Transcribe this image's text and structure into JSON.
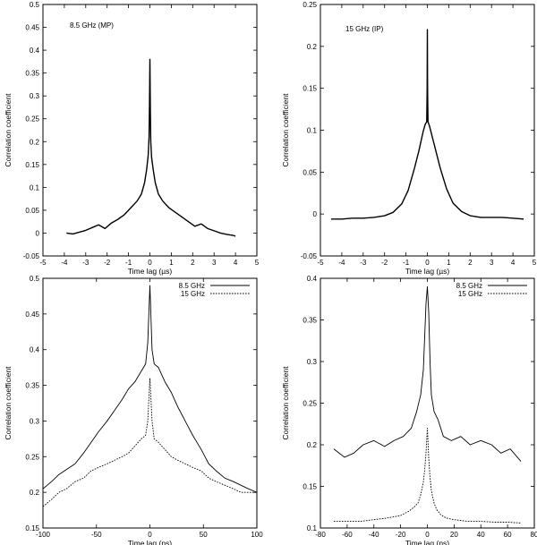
{
  "chart_data": [
    {
      "type": "line",
      "panel": "top-left",
      "annotation": "8.5 GHz (MP)",
      "xlabel": "Time lag (µs)",
      "ylabel": "Correlation coefficient",
      "xlim": [
        -5,
        5
      ],
      "ylim": [
        -0.05,
        0.5
      ],
      "xticks": [
        -5,
        -4,
        -3,
        -2,
        -1,
        0,
        1,
        2,
        3,
        4,
        5
      ],
      "yticks": [
        -0.05,
        0,
        0.05,
        0.1,
        0.15,
        0.2,
        0.25,
        0.3,
        0.35,
        0.4,
        0.45,
        0.5
      ],
      "series": [
        {
          "name": "8.5 GHz (MP)",
          "style": "solid-thick",
          "x": [
            -3.9,
            -3.6,
            -3.3,
            -3.0,
            -2.7,
            -2.4,
            -2.1,
            -1.8,
            -1.5,
            -1.2,
            -0.9,
            -0.6,
            -0.4,
            -0.25,
            -0.15,
            -0.08,
            -0.04,
            -0.02,
            0,
            0.02,
            0.04,
            0.08,
            0.15,
            0.25,
            0.4,
            0.6,
            0.9,
            1.2,
            1.5,
            1.8,
            2.1,
            2.4,
            2.7,
            3.0,
            3.3,
            3.6,
            3.9,
            4.0
          ],
          "y": [
            0.0,
            -0.002,
            0.002,
            0.006,
            0.012,
            0.018,
            0.01,
            0.022,
            0.03,
            0.04,
            0.055,
            0.07,
            0.085,
            0.11,
            0.14,
            0.17,
            0.21,
            0.28,
            0.38,
            0.27,
            0.2,
            0.165,
            0.14,
            0.11,
            0.085,
            0.07,
            0.055,
            0.045,
            0.035,
            0.025,
            0.015,
            0.02,
            0.01,
            0.005,
            0.0,
            -0.003,
            -0.005,
            -0.007
          ]
        }
      ]
    },
    {
      "type": "line",
      "panel": "top-right",
      "annotation": "15 GHz (IP)",
      "xlabel": "Time lag (µs)",
      "ylabel": "Correlation coefficient",
      "xlim": [
        -5,
        5
      ],
      "ylim": [
        -0.05,
        0.25
      ],
      "xticks": [
        -5,
        -4,
        -3,
        -2,
        -1,
        0,
        1,
        2,
        3,
        4,
        5
      ],
      "yticks": [
        -0.05,
        0,
        0.05,
        0.1,
        0.15,
        0.2,
        0.25
      ],
      "series": [
        {
          "name": "15 GHz (IP)",
          "style": "solid-thick",
          "x": [
            -4.5,
            -4.0,
            -3.5,
            -3.0,
            -2.5,
            -2.0,
            -1.6,
            -1.2,
            -0.9,
            -0.6,
            -0.4,
            -0.2,
            -0.1,
            -0.03,
            -0.01,
            0,
            0.01,
            0.03,
            0.1,
            0.2,
            0.4,
            0.6,
            0.9,
            1.2,
            1.6,
            2.0,
            2.5,
            3.0,
            3.5,
            4.0,
            4.5
          ],
          "y": [
            -0.006,
            -0.006,
            -0.005,
            -0.005,
            -0.004,
            -0.002,
            0.002,
            0.012,
            0.028,
            0.055,
            0.075,
            0.098,
            0.107,
            0.11,
            0.15,
            0.22,
            0.15,
            0.11,
            0.105,
            0.095,
            0.075,
            0.055,
            0.03,
            0.013,
            0.003,
            -0.002,
            -0.004,
            -0.004,
            -0.004,
            -0.005,
            -0.006
          ]
        }
      ]
    },
    {
      "type": "line",
      "panel": "bottom-left",
      "xlabel": "Time lag (ns)",
      "ylabel": "Correlation coefficient",
      "xlim": [
        -100,
        100
      ],
      "ylim": [
        0.15,
        0.5
      ],
      "xticks": [
        -100,
        -50,
        0,
        50,
        100
      ],
      "yticks": [
        0.15,
        0.2,
        0.25,
        0.3,
        0.35,
        0.4,
        0.45,
        0.5
      ],
      "legend": [
        "8.5 GHz",
        "15 GHz"
      ],
      "series": [
        {
          "name": "8.5 GHz",
          "style": "solid",
          "x": [
            -100,
            -92,
            -85,
            -78,
            -70,
            -62,
            -55,
            -48,
            -40,
            -33,
            -26,
            -20,
            -14,
            -8,
            -4,
            -2,
            0,
            2,
            4,
            8,
            14,
            20,
            26,
            33,
            40,
            48,
            55,
            62,
            70,
            78,
            85,
            92,
            100
          ],
          "y": [
            0.205,
            0.215,
            0.225,
            0.232,
            0.24,
            0.255,
            0.27,
            0.285,
            0.3,
            0.315,
            0.33,
            0.345,
            0.355,
            0.37,
            0.38,
            0.41,
            0.49,
            0.4,
            0.38,
            0.375,
            0.355,
            0.34,
            0.32,
            0.3,
            0.28,
            0.26,
            0.24,
            0.23,
            0.22,
            0.215,
            0.21,
            0.205,
            0.2
          ]
        },
        {
          "name": "15 GHz",
          "style": "dashed",
          "x": [
            -100,
            -92,
            -85,
            -78,
            -70,
            -62,
            -55,
            -48,
            -40,
            -33,
            -26,
            -20,
            -14,
            -8,
            -4,
            -2,
            0,
            2,
            4,
            8,
            14,
            20,
            26,
            33,
            40,
            48,
            55,
            62,
            70,
            78,
            85,
            92,
            100
          ],
          "y": [
            0.18,
            0.19,
            0.2,
            0.205,
            0.215,
            0.22,
            0.23,
            0.235,
            0.24,
            0.245,
            0.25,
            0.255,
            0.265,
            0.275,
            0.28,
            0.3,
            0.36,
            0.3,
            0.275,
            0.27,
            0.26,
            0.25,
            0.245,
            0.24,
            0.235,
            0.23,
            0.22,
            0.215,
            0.21,
            0.205,
            0.2,
            0.2,
            0.2
          ]
        }
      ]
    },
    {
      "type": "line",
      "panel": "bottom-right",
      "xlabel": "Time lag (ns)",
      "ylabel": "Correlation coefficient",
      "xlim": [
        -80,
        80
      ],
      "ylim": [
        0.1,
        0.4
      ],
      "xticks": [
        -80,
        -60,
        -40,
        -20,
        0,
        20,
        40,
        60,
        80
      ],
      "yticks": [
        0.1,
        0.15,
        0.2,
        0.25,
        0.3,
        0.35,
        0.4
      ],
      "legend": [
        "8.5 GHz",
        "15 GHz"
      ],
      "series": [
        {
          "name": "8.5 GHz",
          "style": "solid",
          "x": [
            -70,
            -62,
            -55,
            -48,
            -40,
            -32,
            -25,
            -18,
            -12,
            -8,
            -5,
            -3,
            -2,
            -1,
            0,
            1,
            2,
            3,
            5,
            8,
            12,
            18,
            25,
            32,
            40,
            48,
            55,
            62,
            70
          ],
          "y": [
            0.195,
            0.185,
            0.19,
            0.2,
            0.205,
            0.198,
            0.205,
            0.21,
            0.22,
            0.24,
            0.26,
            0.29,
            0.33,
            0.37,
            0.39,
            0.36,
            0.3,
            0.26,
            0.24,
            0.23,
            0.21,
            0.205,
            0.21,
            0.2,
            0.205,
            0.2,
            0.19,
            0.195,
            0.18
          ]
        },
        {
          "name": "15 GHz",
          "style": "dashed",
          "x": [
            -70,
            -60,
            -50,
            -40,
            -30,
            -20,
            -14,
            -10,
            -7,
            -5,
            -3,
            -2,
            -1,
            0,
            1,
            2,
            3,
            5,
            7,
            10,
            14,
            20,
            30,
            40,
            50,
            60,
            70
          ],
          "y": [
            0.108,
            0.108,
            0.108,
            0.11,
            0.112,
            0.115,
            0.12,
            0.125,
            0.13,
            0.14,
            0.155,
            0.17,
            0.19,
            0.22,
            0.185,
            0.16,
            0.145,
            0.13,
            0.122,
            0.116,
            0.112,
            0.11,
            0.108,
            0.108,
            0.107,
            0.107,
            0.106
          ]
        }
      ]
    }
  ]
}
